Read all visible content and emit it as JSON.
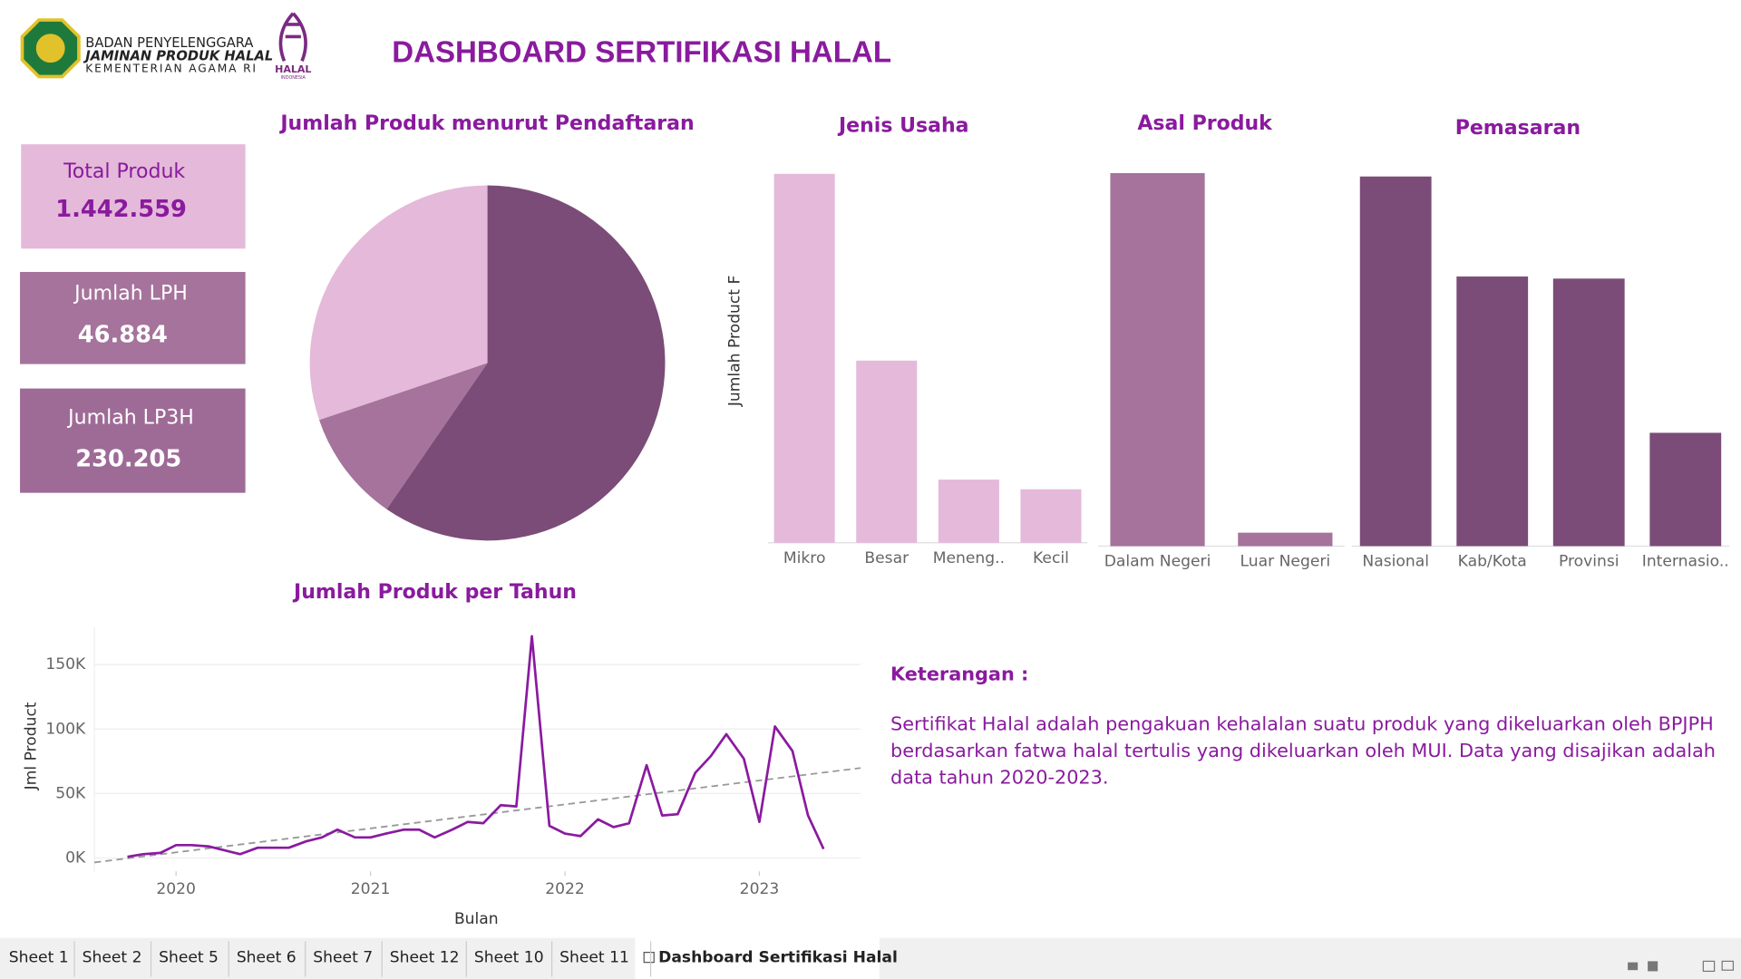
{
  "header": {
    "org_line1": "BADAN PENYELENGGARA",
    "org_line2": "JAMINAN PRODUK HALAL",
    "org_line3": "KEMENTERIAN AGAMA RI",
    "halal_logo": "HALAL",
    "halal_logo_sub": "INDONESIA",
    "title": "DASHBOARD SERTIFIKASI HALAL"
  },
  "kpis": [
    {
      "label": "Total Produk",
      "value": "1.442.559"
    },
    {
      "label": "Jumlah LPH",
      "value": "46.884"
    },
    {
      "label": "Jumlah LP3H",
      "value": "230.205"
    }
  ],
  "chart_data": [
    {
      "type": "pie",
      "title": "Jumlah Produk menurut Pendaftaran",
      "values": [
        59.6,
        10.2,
        30.2
      ],
      "colors": [
        "#7b4c78",
        "#a5739b",
        "#e4b9d9"
      ]
    },
    {
      "type": "bar",
      "title": "Jenis Usaha",
      "ylabel": "Jumlah Product F",
      "categories": [
        "Mikro",
        "Besar",
        "Meneng..",
        "Kecil"
      ],
      "values": [
        800000,
        395000,
        137000,
        116000
      ],
      "color": "#e4b9d9",
      "ylim": [
        0,
        840000
      ]
    },
    {
      "type": "bar",
      "title": "Asal Produk",
      "categories": [
        "Dalam Negeri",
        "Luar Negeri"
      ],
      "values": [
        1390000,
        50000
      ],
      "color": "#a5739b",
      "ylim": [
        0,
        1456000
      ]
    },
    {
      "type": "bar",
      "title": "Pemasaran",
      "categories": [
        "Nasional",
        "Kab/Kota",
        "Provinsi",
        "Internasio.."
      ],
      "values": [
        1419000,
        1035000,
        1027000,
        435000
      ],
      "color": "#7b4c78",
      "ylim": [
        0,
        1500000
      ]
    },
    {
      "type": "line",
      "title": "Jumlah Produk per Tahun",
      "xlabel": "Bulan",
      "ylabel": "Jml Product",
      "color": "#8a1aa0",
      "x": [
        2019.75,
        2019.83,
        2019.92,
        2020,
        2020.08,
        2020.17,
        2020.25,
        2020.33,
        2020.42,
        2020.5,
        2020.58,
        2020.67,
        2020.75,
        2020.83,
        2020.92,
        2021,
        2021.08,
        2021.17,
        2021.25,
        2021.33,
        2021.42,
        2021.5,
        2021.58,
        2021.67,
        2021.75,
        2021.83,
        2021.92,
        2022,
        2022.08,
        2022.17,
        2022.25,
        2022.33,
        2022.42,
        2022.5,
        2022.58,
        2022.67,
        2022.75,
        2022.83,
        2022.92,
        2023,
        2023.08,
        2023.17,
        2023.25,
        2023.33
      ],
      "values": [
        1000,
        3000,
        4000,
        10000,
        10000,
        9000,
        6000,
        3000,
        8000,
        8000,
        8000,
        13000,
        16000,
        22000,
        16000,
        16000,
        19000,
        22000,
        22000,
        16000,
        22000,
        28000,
        27000,
        41000,
        40000,
        172000,
        25000,
        19000,
        17000,
        30000,
        24000,
        27000,
        72000,
        33000,
        34000,
        66000,
        79000,
        96000,
        77000,
        28000,
        102000,
        83000,
        33000,
        7000
      ],
      "trend": {
        "x": [
          2019.58,
          2023.52
        ],
        "values": [
          -3400,
          69800
        ],
        "color": "#999999"
      },
      "xlim": [
        2019.58,
        2023.52
      ],
      "ylim": [
        -10300,
        179000
      ],
      "xticks": [
        2020,
        2021,
        2022,
        2023
      ],
      "yticks": [
        {
          "value": 0,
          "label": "0K"
        },
        {
          "value": 50000,
          "label": "50K"
        },
        {
          "value": 100000,
          "label": "100K"
        },
        {
          "value": 150000,
          "label": "150K"
        }
      ],
      "grid": true
    }
  ],
  "note": {
    "heading": "Keterangan :",
    "lines": [
      "Sertifikat Halal adalah pengakuan kehalalan suatu produk yang dikeluarkan oleh BPJPH",
      "berdasarkan fatwa halal tertulis yang dikeluarkan oleh MUI. Data yang disajikan adalah",
      "data tahun 2020-2023."
    ]
  },
  "tabs": [
    "Sheet 1",
    "Sheet 2",
    "Sheet 5",
    "Sheet 6",
    "Sheet 7",
    "Sheet 12",
    "Sheet 10",
    "Sheet 11",
    "Dashboard Sertifikasi Halal"
  ]
}
